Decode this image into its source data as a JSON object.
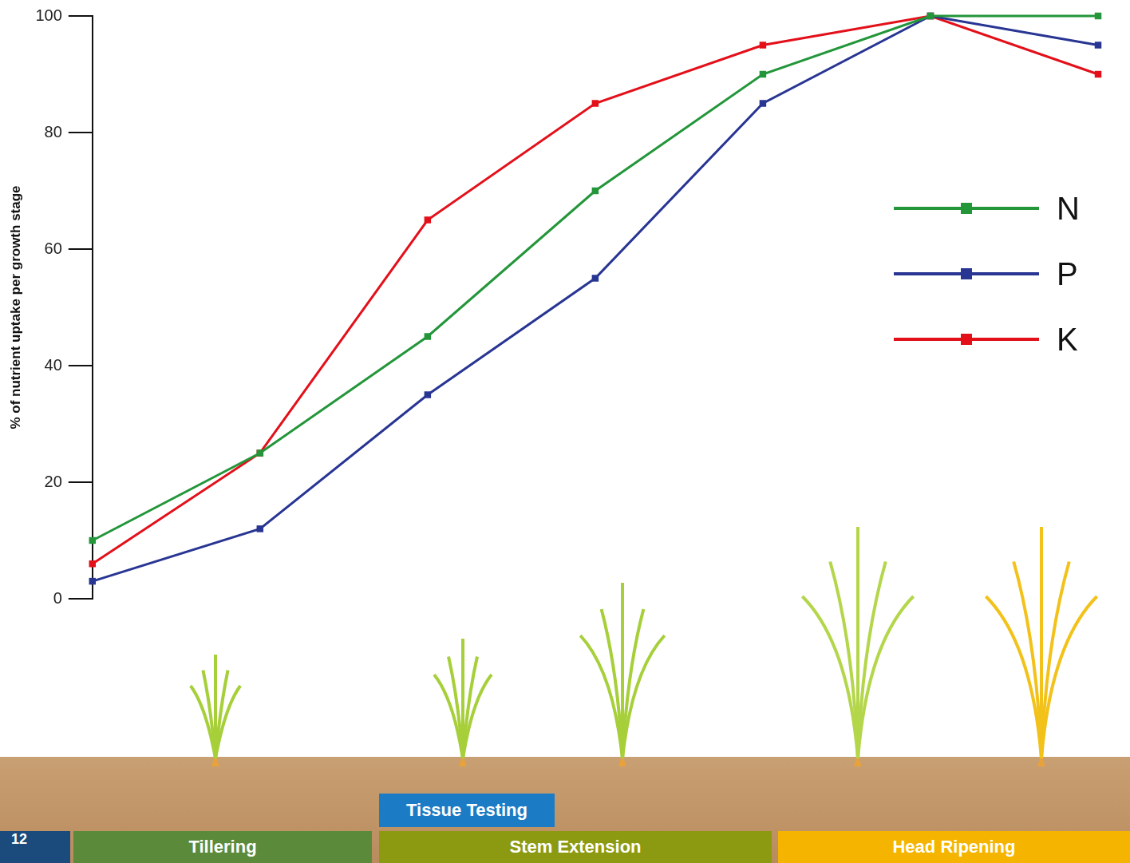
{
  "chart_data": {
    "type": "line",
    "y_label": "% of nutrient uptake per growth stage",
    "categories": [
      null,
      null,
      null,
      null,
      null,
      null,
      null
    ],
    "series": [
      {
        "name": "N",
        "color": "#23963a",
        "marker": "square",
        "values": [
          10,
          25,
          45,
          70,
          90,
          100,
          100
        ]
      },
      {
        "name": "P",
        "color": "#283593",
        "marker": "square",
        "values": [
          3,
          12,
          35,
          55,
          85,
          100,
          95
        ]
      },
      {
        "name": "K",
        "color": "#e3101a",
        "marker": "square",
        "values": [
          6,
          25,
          65,
          85,
          95,
          100,
          90
        ]
      }
    ],
    "ylim": [
      0,
      100
    ],
    "yticks": [
      0,
      20,
      40,
      60,
      80,
      100
    ],
    "grid": false,
    "legend": "right",
    "tick_labels": "y"
  },
  "growth_stages": [
    {
      "label": "Tillering",
      "color": "#5b8a3a"
    },
    {
      "label": "Stem Extension",
      "color": "#8c9a12"
    },
    {
      "label": "Head Ripening",
      "color": "#f4b400"
    }
  ],
  "annotation": {
    "label": "Tissue Testing",
    "color": "#1b7bc4"
  },
  "page_number": 12
}
